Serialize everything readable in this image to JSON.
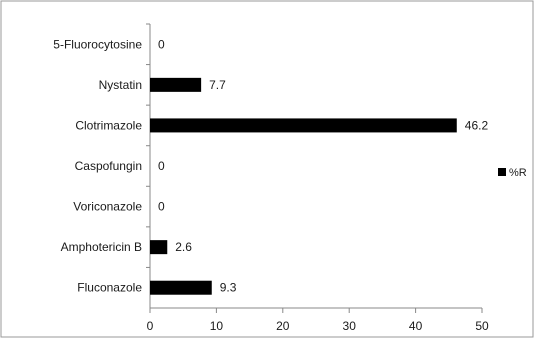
{
  "chart_data": {
    "type": "bar",
    "orientation": "horizontal",
    "categories": [
      "5-Fluorocytosine",
      "Nystatin",
      "Clotrimazole",
      "Caspofungin",
      "Voriconazole",
      "Amphotericin B",
      "Fluconazole"
    ],
    "series": [
      {
        "name": "%R",
        "values": [
          0,
          7.7,
          46.2,
          0,
          0,
          2.6,
          9.3
        ],
        "color": "#000000"
      }
    ],
    "data_labels": [
      "0",
      "7.7",
      "46.2",
      "0",
      "0",
      "2.6",
      "9.3"
    ],
    "xlim": [
      0,
      50
    ],
    "xticks": [
      0,
      10,
      20,
      30,
      40,
      50
    ],
    "xtick_labels": [
      "0",
      "10",
      "20",
      "30",
      "40",
      "50"
    ],
    "grid": false,
    "legend": {
      "position": "right",
      "entries": [
        "%R"
      ]
    },
    "title": "",
    "xlabel": "",
    "ylabel": ""
  }
}
